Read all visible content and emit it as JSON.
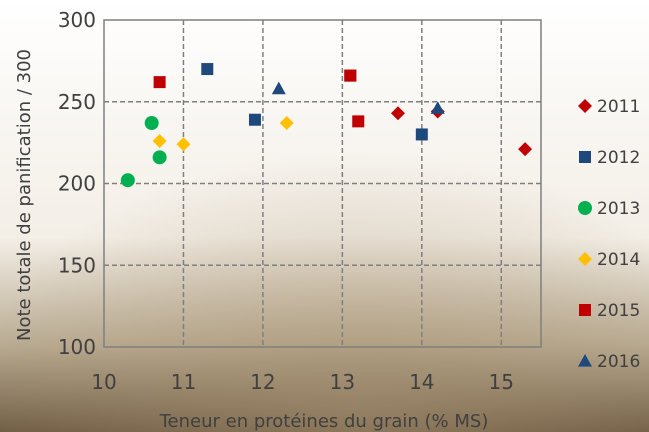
{
  "chart_data": {
    "type": "scatter",
    "xlabel": "Teneur en protéines du grain (% MS)",
    "ylabel": "Note totale de panification / 300",
    "xlim": [
      10,
      15.5
    ],
    "ylim": [
      100,
      300
    ],
    "xticks": [
      "10",
      "11",
      "12",
      "13",
      "14",
      "15"
    ],
    "yticks": [
      "100",
      "150",
      "200",
      "250",
      "300"
    ],
    "grid": true,
    "legend_position": "right",
    "series": [
      {
        "name": "2011",
        "color": "#C00000",
        "marker": "diamond",
        "points": [
          {
            "x": 13.7,
            "y": 243
          },
          {
            "x": 14.2,
            "y": 244
          },
          {
            "x": 15.3,
            "y": 221
          }
        ]
      },
      {
        "name": "2012",
        "color": "#1F497D",
        "marker": "square",
        "points": [
          {
            "x": 11.3,
            "y": 270
          },
          {
            "x": 11.9,
            "y": 239
          },
          {
            "x": 13.1,
            "y": 266
          },
          {
            "x": 14.0,
            "y": 230
          }
        ]
      },
      {
        "name": "2013",
        "color": "#00B050",
        "marker": "circle",
        "points": [
          {
            "x": 10.3,
            "y": 202
          },
          {
            "x": 10.6,
            "y": 237
          },
          {
            "x": 10.7,
            "y": 216
          }
        ]
      },
      {
        "name": "2014",
        "color": "#FFC000",
        "marker": "diamond",
        "points": [
          {
            "x": 10.7,
            "y": 226
          },
          {
            "x": 11.0,
            "y": 224
          },
          {
            "x": 12.3,
            "y": 237
          }
        ]
      },
      {
        "name": "2015",
        "color": "#C00000",
        "marker": "square",
        "points": [
          {
            "x": 10.7,
            "y": 262
          },
          {
            "x": 13.1,
            "y": 266
          },
          {
            "x": 13.2,
            "y": 238
          }
        ]
      },
      {
        "name": "2016",
        "color": "#1F497D",
        "marker": "triangle",
        "points": [
          {
            "x": 12.2,
            "y": 258
          },
          {
            "x": 14.2,
            "y": 246
          }
        ]
      }
    ]
  }
}
